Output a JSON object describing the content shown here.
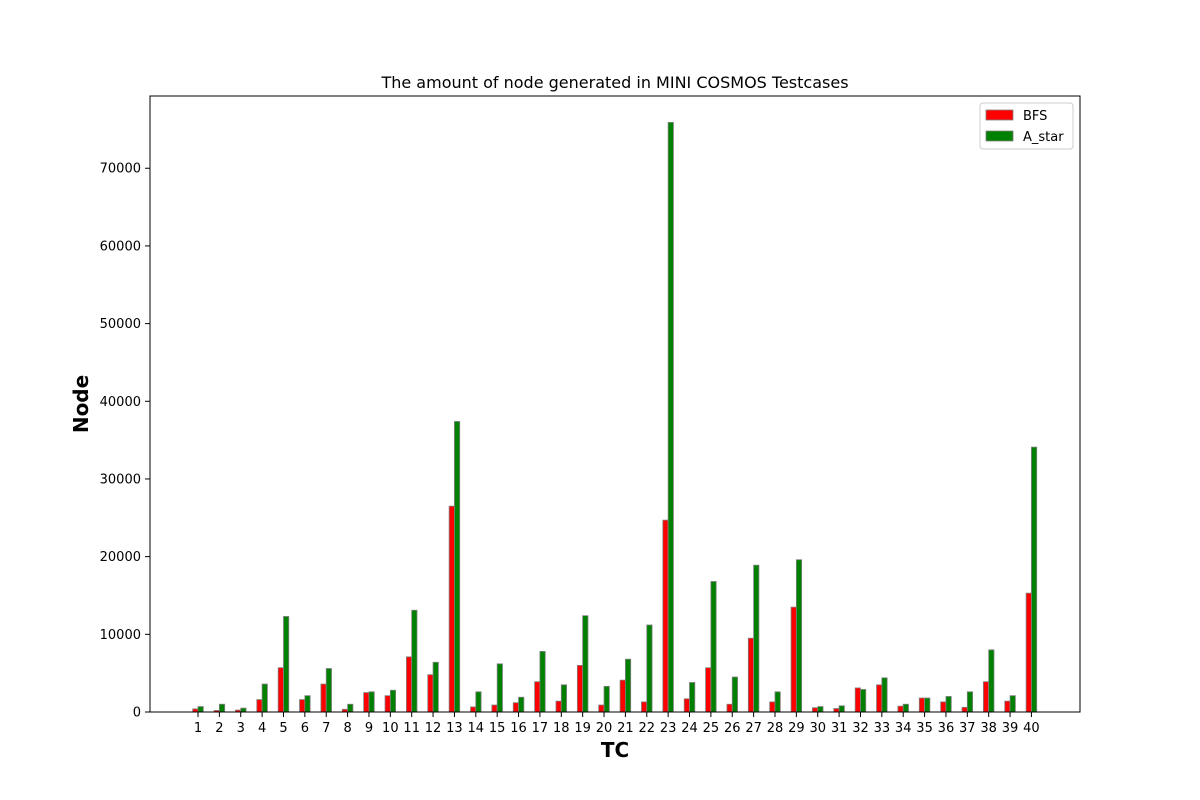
{
  "chart_data": {
    "type": "bar",
    "title": "The amount of node generated in MINI COSMOS Testcases",
    "xlabel": "TC",
    "ylabel": "Node",
    "ylim": [
      0,
      80000
    ],
    "yticks": [
      0,
      10000,
      20000,
      30000,
      40000,
      50000,
      60000,
      70000
    ],
    "grid": false,
    "legend_position": "top-right",
    "categories": [
      "1",
      "2",
      "3",
      "4",
      "5",
      "6",
      "7",
      "8",
      "9",
      "10",
      "11",
      "12",
      "13",
      "14",
      "15",
      "16",
      "17",
      "18",
      "19",
      "20",
      "21",
      "22",
      "23",
      "24",
      "25",
      "26",
      "27",
      "28",
      "29",
      "30",
      "31",
      "32",
      "33",
      "34",
      "35",
      "36",
      "37",
      "38",
      "39",
      "40"
    ],
    "series": [
      {
        "name": "BFS",
        "color": "#ff0000",
        "values": [
          400,
          200,
          250,
          1600,
          5700,
          1600,
          3600,
          350,
          2500,
          2100,
          7100,
          4800,
          26500,
          650,
          900,
          1200,
          3900,
          1400,
          6000,
          900,
          4100,
          1300,
          24700,
          1700,
          5700,
          1000,
          9500,
          1300,
          13500,
          550,
          450,
          3100,
          3500,
          750,
          1800,
          1300,
          600,
          3900,
          1400,
          15300
        ]
      },
      {
        "name": "A_star",
        "color": "#008000",
        "values": [
          700,
          1000,
          500,
          3600,
          12300,
          2100,
          5600,
          1000,
          2600,
          2800,
          13100,
          6400,
          37400,
          2600,
          6200,
          1900,
          7800,
          3500,
          12400,
          3300,
          6800,
          11200,
          75900,
          3800,
          16800,
          4500,
          18900,
          2600,
          19600,
          700,
          800,
          2900,
          4400,
          1000,
          1800,
          2000,
          2600,
          8000,
          2100,
          34100
        ]
      }
    ]
  }
}
